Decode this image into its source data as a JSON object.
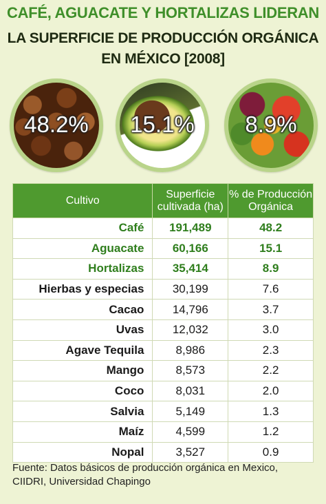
{
  "title": {
    "line1": "CAFÉ, AGUACATE Y HORTALIZAS LIDERAN",
    "line2": "LA SUPERFICIE DE PRODUCCIÓN ORGÁNICA",
    "line3": "EN MÉXICO [2008]"
  },
  "highlights": [
    {
      "label": "48.2%",
      "image": "coffee-beans-photo"
    },
    {
      "label": "15.1%",
      "image": "avocado-photo"
    },
    {
      "label": "8.9%",
      "image": "vegetables-photo"
    }
  ],
  "colors": {
    "header_green": "#4f9a2f",
    "highlight_green": "#2f7e1d",
    "background": "#eef3d4"
  },
  "chart_data": {
    "type": "table",
    "columns": [
      "Cultivo",
      "Superficie cultivada (ha)",
      "% de Producción Orgánica"
    ],
    "header_lines": [
      [
        "Cultivo"
      ],
      [
        "Superficie",
        "cultivada (ha)"
      ],
      [
        "% de Producción",
        "Orgánica"
      ]
    ],
    "rows": [
      {
        "cultivo": "Café",
        "superficie": "191,489",
        "porcentaje": "48.2",
        "highlight": true
      },
      {
        "cultivo": "Aguacate",
        "superficie": "60,166",
        "porcentaje": "15.1",
        "highlight": true
      },
      {
        "cultivo": "Hortalizas",
        "superficie": "35,414",
        "porcentaje": "8.9",
        "highlight": true
      },
      {
        "cultivo": "Hierbas y especias",
        "superficie": "30,199",
        "porcentaje": "7.6",
        "highlight": false
      },
      {
        "cultivo": "Cacao",
        "superficie": "14,796",
        "porcentaje": "3.7",
        "highlight": false
      },
      {
        "cultivo": "Uvas",
        "superficie": "12,032",
        "porcentaje": "3.0",
        "highlight": false
      },
      {
        "cultivo": "Agave Tequila",
        "superficie": "8,986",
        "porcentaje": "2.3",
        "highlight": false
      },
      {
        "cultivo": "Mango",
        "superficie": "8,573",
        "porcentaje": "2.2",
        "highlight": false
      },
      {
        "cultivo": "Coco",
        "superficie": "8,031",
        "porcentaje": "2.0",
        "highlight": false
      },
      {
        "cultivo": "Salvia",
        "superficie": "5,149",
        "porcentaje": "1.3",
        "highlight": false
      },
      {
        "cultivo": "Maíz",
        "superficie": "4,599",
        "porcentaje": "1.2",
        "highlight": false
      },
      {
        "cultivo": "Nopal",
        "superficie": "3,527",
        "porcentaje": "0.9",
        "highlight": false
      }
    ]
  },
  "source": {
    "line1": "Fuente: Datos básicos de producción orgánica en Mexico,",
    "line2": "CIIDRI, Universidad Chapingo"
  }
}
